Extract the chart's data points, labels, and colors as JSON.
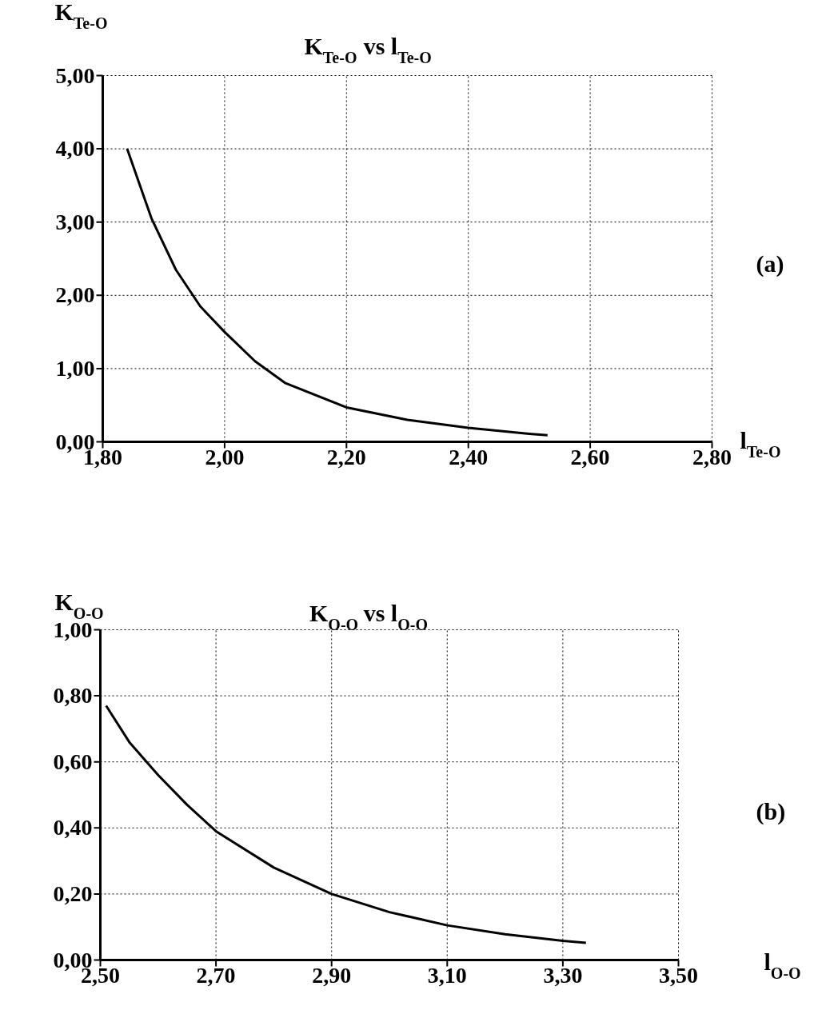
{
  "chart_data": [
    {
      "type": "line",
      "title": "K$_{Te-O}$ vs l$_{Te-O}$",
      "xlabel": "l$_{Te-O}$",
      "ylabel": "K$_{Te-O}$",
      "annotations": [
        "(a)"
      ],
      "x": [
        1.84,
        1.88,
        1.92,
        1.96,
        2.0,
        2.05,
        2.1,
        2.2,
        2.3,
        2.4,
        2.5,
        2.53
      ],
      "series": [
        {
          "color": "#000000",
          "values": [
            4.0,
            3.05,
            2.35,
            1.85,
            1.5,
            1.1,
            0.8,
            0.47,
            0.3,
            0.19,
            0.11,
            0.09
          ]
        }
      ],
      "xlim": [
        1.8,
        2.8
      ],
      "ylim": [
        0,
        5
      ],
      "xticks": [
        {
          "value": 1.8,
          "label": "1,80"
        },
        {
          "value": 2.0,
          "label": "2,00"
        },
        {
          "value": 2.2,
          "label": "2,20"
        },
        {
          "value": 2.4,
          "label": "2,40"
        },
        {
          "value": 2.6,
          "label": "2,60"
        },
        {
          "value": 2.8,
          "label": "2,80"
        }
      ],
      "yticks": [
        {
          "value": 0,
          "label": "0,00"
        },
        {
          "value": 1,
          "label": "1,00"
        },
        {
          "value": 2,
          "label": "2,00"
        },
        {
          "value": 3,
          "label": "3,00"
        },
        {
          "value": 4,
          "label": "4,00"
        },
        {
          "value": 5,
          "label": "5,00"
        }
      ],
      "grid": true,
      "marker": "none",
      "line_style": "solid"
    },
    {
      "type": "line",
      "title": "K$_{O-O}$ vs l$_{O-O}$",
      "xlabel": "l$_{O-O}$",
      "ylabel": "K$_{O-O}$",
      "annotations": [
        "(b)"
      ],
      "x": [
        2.51,
        2.55,
        2.6,
        2.65,
        2.7,
        2.8,
        2.9,
        3.0,
        3.1,
        3.2,
        3.3,
        3.34
      ],
      "series": [
        {
          "color": "#000000",
          "values": [
            0.77,
            0.66,
            0.56,
            0.47,
            0.39,
            0.28,
            0.2,
            0.145,
            0.105,
            0.078,
            0.058,
            0.052
          ]
        }
      ],
      "xlim": [
        2.5,
        3.5
      ],
      "ylim": [
        0,
        1
      ],
      "xticks": [
        {
          "value": 2.5,
          "label": "2,50"
        },
        {
          "value": 2.7,
          "label": "2,70"
        },
        {
          "value": 2.9,
          "label": "2,90"
        },
        {
          "value": 3.1,
          "label": "3,10"
        },
        {
          "value": 3.3,
          "label": "3,30"
        },
        {
          "value": 3.5,
          "label": "3,50"
        }
      ],
      "yticks": [
        {
          "value": 0,
          "label": "0,00"
        },
        {
          "value": 0.2,
          "label": "0,20"
        },
        {
          "value": 0.4,
          "label": "0,40"
        },
        {
          "value": 0.6,
          "label": "0,60"
        },
        {
          "value": 0.8,
          "label": "0,80"
        },
        {
          "value": 1.0,
          "label": "1,00"
        }
      ],
      "grid": true,
      "marker": "none",
      "line_style": "solid"
    }
  ]
}
